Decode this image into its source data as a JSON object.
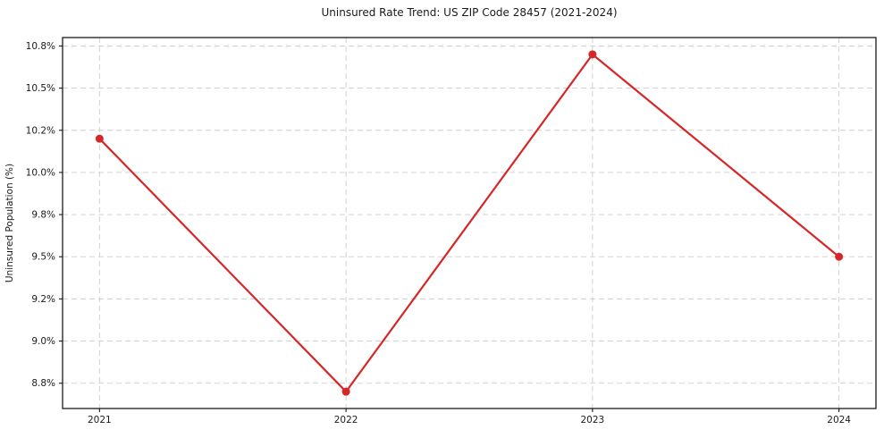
{
  "chart_data": {
    "type": "line",
    "title": "Uninsured Rate Trend: US ZIP Code 28457 (2021-2024)",
    "xlabel": "",
    "ylabel": "Uninsured Population (%)",
    "x": [
      2021,
      2022,
      2023,
      2024
    ],
    "values": [
      10.2,
      8.7,
      10.7,
      9.5
    ],
    "x_tick_labels": [
      "2021",
      "2022",
      "2023",
      "2024"
    ],
    "y_ticks": [
      8.75,
      9.0,
      9.25,
      9.5,
      9.75,
      10.0,
      10.25,
      10.5,
      10.75
    ],
    "y_tick_labels": [
      "8.8%",
      "9.0%",
      "9.2%",
      "9.5%",
      "9.8%",
      "10.0%",
      "10.2%",
      "10.5%",
      "10.8%"
    ],
    "xlim": [
      2020.85,
      2024.15
    ],
    "ylim": [
      8.6,
      10.8
    ],
    "grid": true,
    "grid_style": "dashed",
    "legend": "none",
    "colors": {
      "line": "#d62728",
      "marker": "#d62728",
      "grid": "#cdcdcd",
      "spine": "#1a1a1a",
      "text": "#1a1a1a",
      "background": "#ffffff"
    }
  }
}
